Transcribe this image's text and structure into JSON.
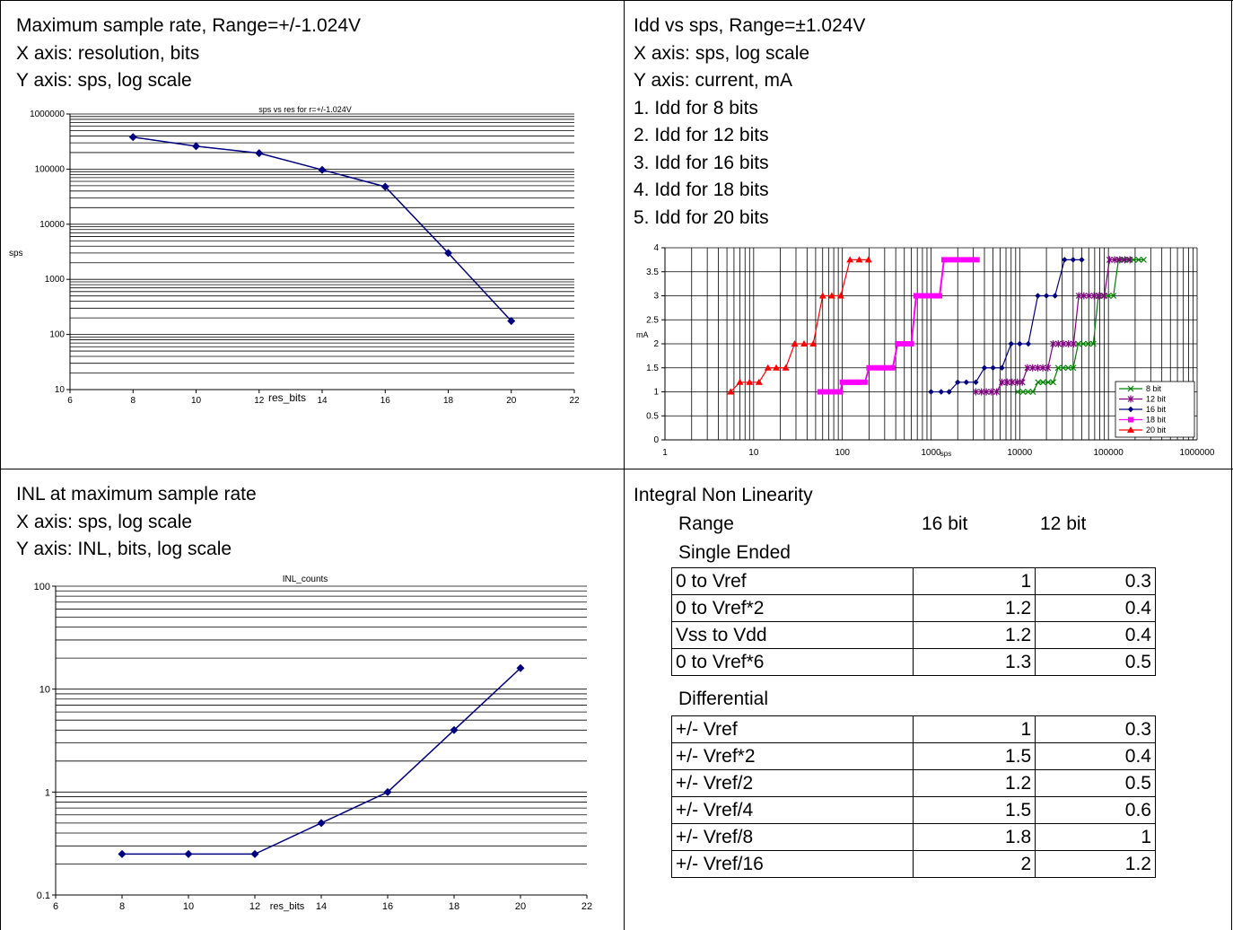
{
  "panels": {
    "top_left": {
      "lines": [
        "Maximum sample rate, Range=+/-1.024V",
        "X axis: resolution, bits",
        "Y axis: sps, log scale"
      ]
    },
    "top_right": {
      "lines": [
        "Idd vs sps, Range=±1.024V",
        "X axis: sps, log scale",
        "Y axis: current, mA",
        "1. Idd for 8 bits",
        "2. Idd for 12 bits",
        "3. Idd for 16 bits",
        "4. Idd for 18 bits",
        "5. Idd for 20 bits"
      ]
    },
    "bottom_left": {
      "lines": [
        "INL at maximum sample rate",
        "X axis: sps, log scale",
        "Y axis: INL, bits, log scale"
      ]
    },
    "bottom_right": {
      "title": "Integral Non Linearity",
      "header": {
        "range": "Range",
        "col1": "16 bit",
        "col2": "12 bit"
      },
      "single_label": "Single Ended",
      "single": [
        {
          "range": "0 to Vref",
          "b16": "1",
          "b12": "0.3"
        },
        {
          "range": "0 to Vref*2",
          "b16": "1.2",
          "b12": "0.4"
        },
        {
          "range": "Vss to Vdd",
          "b16": "1.2",
          "b12": "0.4"
        },
        {
          "range": "0  to Vref*6",
          "b16": "1.3",
          "b12": "0.5"
        }
      ],
      "diff_label": "Differential",
      "differential": [
        {
          "range": "+/- Vref",
          "b16": "1",
          "b12": "0.3"
        },
        {
          "range": "+/- Vref*2",
          "b16": "1.5",
          "b12": "0.4"
        },
        {
          "range": "+/- Vref/2",
          "b16": "1.2",
          "b12": "0.5"
        },
        {
          "range": "+/- Vref/4",
          "b16": "1.5",
          "b12": "0.6"
        },
        {
          "range": "+/- Vref/8",
          "b16": "1.8",
          "b12": "1"
        },
        {
          "range": "+/- Vref/16",
          "b16": "2",
          "b12": "1.2"
        }
      ]
    }
  },
  "colors": {
    "navy": "#000080",
    "purple": "#800080",
    "green": "#008000",
    "magenta": "#FF00FF",
    "red": "#FF0000"
  },
  "chart_data": [
    {
      "type": "scatter",
      "title": "sps vs res for r=+/-1.024V",
      "xlabel": "res_bits",
      "ylabel": "sps",
      "xlim": [
        6,
        22
      ],
      "ylim": [
        10,
        1000000
      ],
      "yscale": "log",
      "x_ticks": [
        "6",
        "8",
        "10",
        "12",
        "14",
        "16",
        "18",
        "20",
        "22"
      ],
      "y_ticks": [
        "10",
        "100",
        "1000",
        "10000",
        "100000",
        "1000000"
      ],
      "series": [
        {
          "x": [
            8,
            10,
            12,
            14,
            16,
            18,
            20
          ],
          "y": [
            380000,
            260000,
            195000,
            97000,
            48000,
            3000,
            175
          ]
        }
      ]
    },
    {
      "type": "line",
      "xlabel": "sps",
      "ylabel": "mA",
      "xlim": [
        1,
        1000000
      ],
      "ylim": [
        0,
        4
      ],
      "xscale": "log",
      "x_ticks": [
        "1",
        "10",
        "100",
        "1000",
        "10000",
        "100000",
        "1000000"
      ],
      "y_ticks": [
        "0",
        "0.5",
        "1",
        "1.5",
        "2",
        "2.5",
        "3",
        "3.5",
        "4"
      ],
      "legend": "bottom-right",
      "series": [
        {
          "name": "8 bit",
          "x": [
            9500,
            10900,
            12400,
            14100,
            16100,
            18300,
            20900,
            23800,
            27100,
            30900,
            35200,
            40100,
            45700,
            52100,
            59300,
            67600,
            77100,
            87800,
            100000,
            114000,
            130000,
            148000,
            169000,
            192000,
            219000,
            250000
          ],
          "y": [
            1,
            1,
            1,
            1,
            1.2,
            1.2,
            1.2,
            1.2,
            1.5,
            1.5,
            1.5,
            1.5,
            2,
            2,
            2,
            2,
            3,
            3,
            3,
            3,
            3.75,
            3.75,
            3.75,
            3.75,
            3.75,
            3.75
          ]
        },
        {
          "name": "12 bit",
          "x": [
            3200,
            3700,
            4200,
            4800,
            5500,
            6300,
            7200,
            8200,
            9400,
            10700,
            12200,
            14000,
            16000,
            18200,
            20800,
            23800,
            27200,
            31100,
            35500,
            40500,
            46300,
            52900,
            60400,
            69000,
            78800,
            90000,
            102800,
            117400,
            134100,
            153200,
            175000
          ],
          "y": [
            1,
            1,
            1,
            1,
            1,
            1.2,
            1.2,
            1.2,
            1.2,
            1.2,
            1.5,
            1.5,
            1.5,
            1.5,
            1.5,
            2,
            2,
            2,
            2,
            2,
            3,
            3,
            3,
            3,
            3,
            3,
            3.75,
            3.75,
            3.75,
            3.75,
            3.75
          ]
        },
        {
          "name": "16 bit",
          "x": [
            1000,
            1300,
            1600,
            2000,
            2500,
            3200,
            4000,
            5000,
            6300,
            8000,
            10000,
            12500,
            16000,
            20000,
            25000,
            32000,
            40000,
            50000
          ],
          "y": [
            1,
            1,
            1,
            1.2,
            1.2,
            1.2,
            1.5,
            1.5,
            1.5,
            2,
            2,
            2,
            3,
            3,
            3,
            3.75,
            3.75,
            3.75
          ]
        },
        {
          "name": "18 bit",
          "x": [
            56,
            60,
            64,
            68,
            72,
            76,
            80,
            85,
            90,
            95,
            100,
            110,
            120,
            130,
            140,
            150,
            160,
            180,
            200,
            230,
            260,
            290,
            330,
            370,
            420,
            470,
            530,
            600,
            680,
            770,
            870,
            980,
            1100,
            1250,
            1400,
            1600,
            1800,
            2000,
            2300,
            2600,
            2900,
            3300
          ],
          "y": [
            1,
            1,
            1,
            1,
            1,
            1,
            1,
            1,
            1,
            1,
            1.2,
            1.2,
            1.2,
            1.2,
            1.2,
            1.2,
            1.2,
            1.2,
            1.5,
            1.5,
            1.5,
            1.5,
            1.5,
            1.5,
            2,
            2,
            2,
            2,
            3,
            3,
            3,
            3,
            3,
            3,
            3.75,
            3.75,
            3.75,
            3.75,
            3.75,
            3.75,
            3.75,
            3.75
          ]
        },
        {
          "name": "20 bit",
          "x": [
            5.5,
            7,
            9,
            11.5,
            14.5,
            18,
            23,
            29,
            37,
            47,
            60,
            76,
            96,
            122,
            155,
            197
          ],
          "y": [
            1,
            1.2,
            1.2,
            1.2,
            1.5,
            1.5,
            1.5,
            2,
            2,
            2,
            3,
            3,
            3,
            3.75,
            3.75,
            3.75
          ]
        }
      ]
    },
    {
      "type": "scatter",
      "title": "INL_counts",
      "xlabel": "res_bits",
      "ylabel": "",
      "xlim": [
        6,
        22
      ],
      "ylim": [
        0.1,
        100
      ],
      "yscale": "log",
      "x_ticks": [
        "6",
        "8",
        "10",
        "12",
        "14",
        "16",
        "18",
        "20",
        "22"
      ],
      "y_ticks": [
        "0.1",
        "1",
        "10",
        "100"
      ],
      "series": [
        {
          "x": [
            8,
            10,
            12,
            14,
            16,
            18,
            20
          ],
          "y": [
            0.25,
            0.25,
            0.25,
            0.5,
            1,
            4,
            16
          ]
        }
      ]
    }
  ]
}
